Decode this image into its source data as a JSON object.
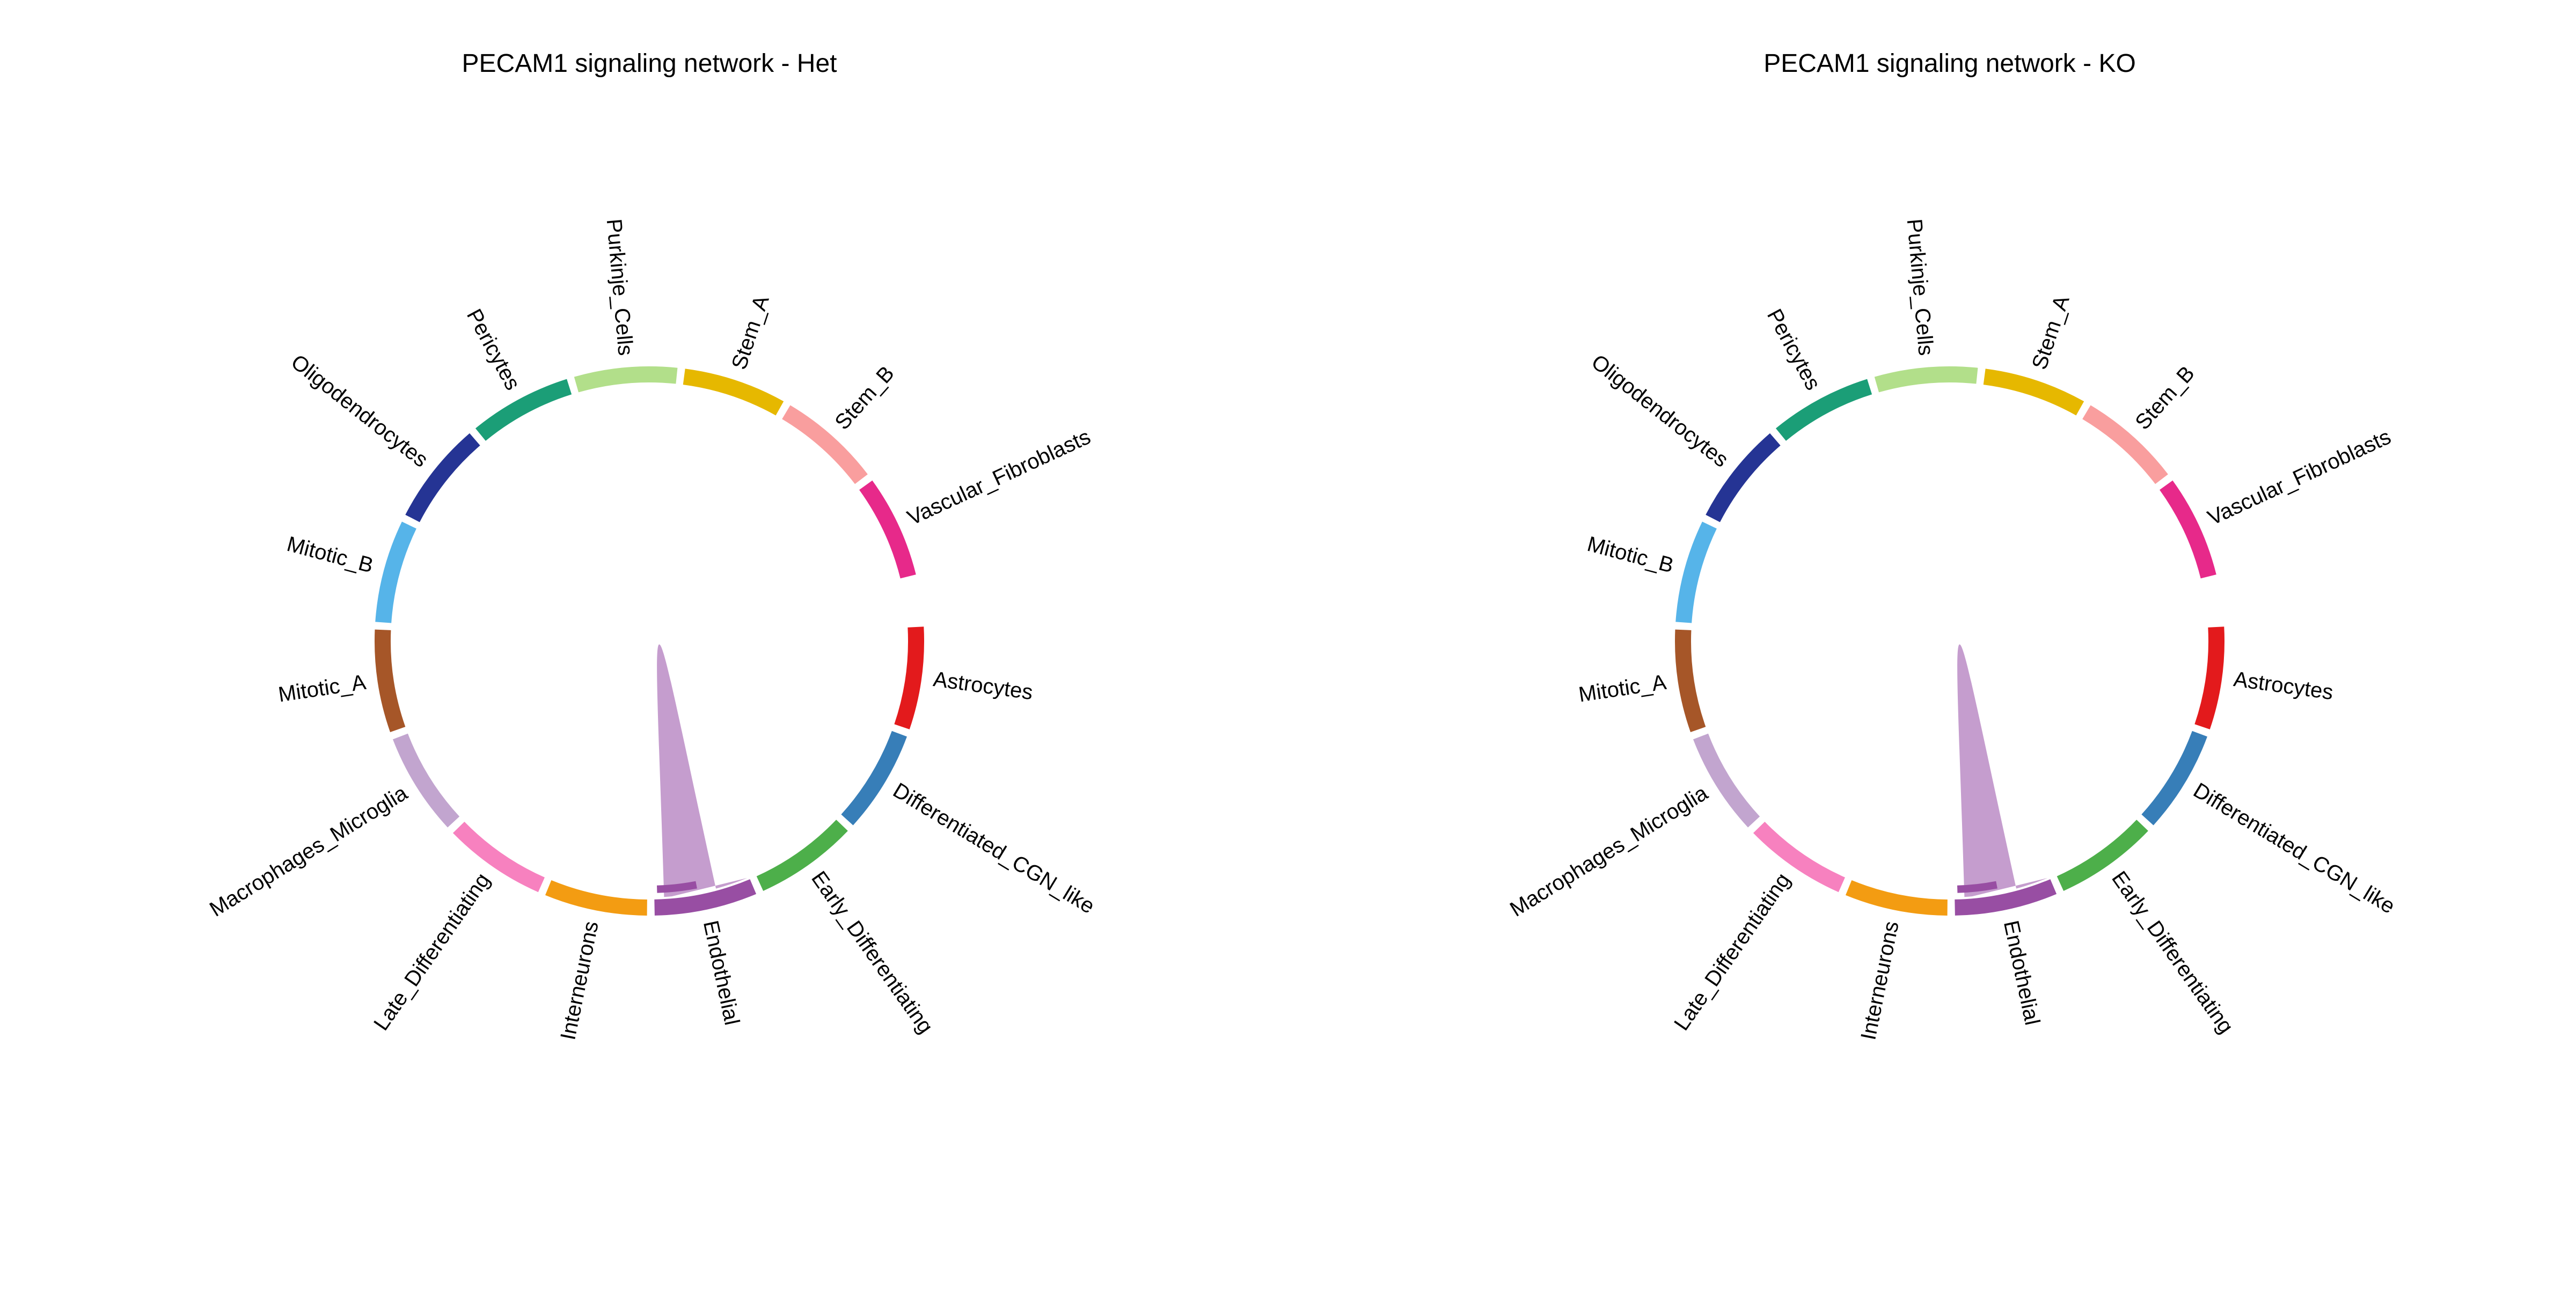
{
  "chart_data": [
    {
      "type": "chord",
      "title": "PECAM1 signaling network - Het",
      "sectors": [
        {
          "name": "Astrocytes",
          "color": "#E31A1C"
        },
        {
          "name": "Differentiated_CGN_like",
          "color": "#377EB8"
        },
        {
          "name": "Early_Differentiating",
          "color": "#4DAF4A"
        },
        {
          "name": "Endothelial",
          "color": "#984EA3"
        },
        {
          "name": "Interneurons",
          "color": "#F39C12"
        },
        {
          "name": "Late_Differentiating",
          "color": "#F781BF"
        },
        {
          "name": "Macrophages_Microglia",
          "color": "#C2A5CF"
        },
        {
          "name": "Mitotic_A",
          "color": "#A65628"
        },
        {
          "name": "Mitotic_B",
          "color": "#56B4E9"
        },
        {
          "name": "Oligodendrocytes",
          "color": "#253494"
        },
        {
          "name": "Pericytes",
          "color": "#1B9E77"
        },
        {
          "name": "Purkinje_Cells",
          "color": "#B2DF8A"
        },
        {
          "name": "Stem_A",
          "color": "#E6B800"
        },
        {
          "name": "Stem_B",
          "color": "#F99E9E"
        },
        {
          "name": "Vascular_Fibroblasts",
          "color": "#E7298A"
        }
      ],
      "links": [
        {
          "source": "Endothelial",
          "target": "Endothelial",
          "color": "#C298CB"
        }
      ]
    },
    {
      "type": "chord",
      "title": "PECAM1 signaling network - KO",
      "sectors": [
        {
          "name": "Astrocytes",
          "color": "#E31A1C"
        },
        {
          "name": "Differentiated_CGN_like",
          "color": "#377EB8"
        },
        {
          "name": "Early_Differentiating",
          "color": "#4DAF4A"
        },
        {
          "name": "Endothelial",
          "color": "#984EA3"
        },
        {
          "name": "Interneurons",
          "color": "#F39C12"
        },
        {
          "name": "Late_Differentiating",
          "color": "#F781BF"
        },
        {
          "name": "Macrophages_Microglia",
          "color": "#C2A5CF"
        },
        {
          "name": "Mitotic_A",
          "color": "#A65628"
        },
        {
          "name": "Mitotic_B",
          "color": "#56B4E9"
        },
        {
          "name": "Oligodendrocytes",
          "color": "#253494"
        },
        {
          "name": "Pericytes",
          "color": "#1B9E77"
        },
        {
          "name": "Purkinje_Cells",
          "color": "#B2DF8A"
        },
        {
          "name": "Stem_A",
          "color": "#E6B800"
        },
        {
          "name": "Stem_B",
          "color": "#F99E9E"
        },
        {
          "name": "Vascular_Fibroblasts",
          "color": "#E7298A"
        }
      ],
      "links": [
        {
          "source": "Endothelial",
          "target": "Endothelial",
          "color": "#C298CB"
        }
      ]
    }
  ]
}
